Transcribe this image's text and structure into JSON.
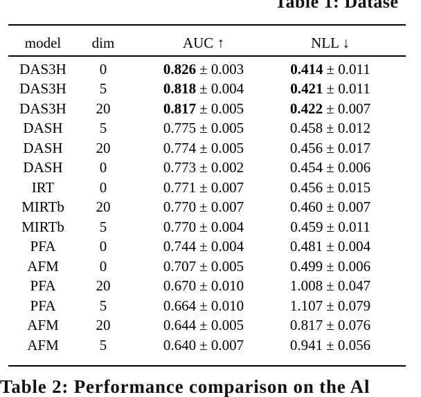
{
  "captions": {
    "top_fragment": "Table 1: Datase",
    "bottom_fragment": "Table 2: Performance comparison on the Al"
  },
  "table": {
    "headers": {
      "model": "model",
      "dim": "dim",
      "auc": "AUC ↑",
      "nll": "NLL ↓"
    },
    "rows": [
      {
        "model": "DAS3H",
        "dim": "0",
        "auc": "0.826",
        "auc_err": "± 0.003",
        "nll": "0.414",
        "nll_err": "± 0.011",
        "bold": true
      },
      {
        "model": "DAS3H",
        "dim": "5",
        "auc": "0.818",
        "auc_err": "± 0.004",
        "nll": "0.421",
        "nll_err": "± 0.011",
        "bold": true
      },
      {
        "model": "DAS3H",
        "dim": "20",
        "auc": "0.817",
        "auc_err": "± 0.005",
        "nll": "0.422",
        "nll_err": "± 0.007",
        "bold": true
      },
      {
        "model": "DASH",
        "dim": "5",
        "auc": "0.775",
        "auc_err": "± 0.005",
        "nll": "0.458",
        "nll_err": "± 0.012",
        "bold": false
      },
      {
        "model": "DASH",
        "dim": "20",
        "auc": "0.774",
        "auc_err": "± 0.005",
        "nll": "0.456",
        "nll_err": "± 0.017",
        "bold": false
      },
      {
        "model": "DASH",
        "dim": "0",
        "auc": "0.773",
        "auc_err": "± 0.002",
        "nll": "0.454",
        "nll_err": "± 0.006",
        "bold": false
      },
      {
        "model": "IRT",
        "dim": "0",
        "auc": "0.771",
        "auc_err": "± 0.007",
        "nll": "0.456",
        "nll_err": "± 0.015",
        "bold": false
      },
      {
        "model": "MIRTb",
        "dim": "20",
        "auc": "0.770",
        "auc_err": "± 0.007",
        "nll": "0.460",
        "nll_err": "± 0.007",
        "bold": false
      },
      {
        "model": "MIRTb",
        "dim": "5",
        "auc": "0.770",
        "auc_err": "± 0.004",
        "nll": "0.459",
        "nll_err": "± 0.011",
        "bold": false
      },
      {
        "model": "PFA",
        "dim": "0",
        "auc": "0.744",
        "auc_err": "± 0.004",
        "nll": "0.481",
        "nll_err": "± 0.004",
        "bold": false
      },
      {
        "model": "AFM",
        "dim": "0",
        "auc": "0.707",
        "auc_err": "± 0.005",
        "nll": "0.499",
        "nll_err": "± 0.006",
        "bold": false
      },
      {
        "model": "PFA",
        "dim": "20",
        "auc": "0.670",
        "auc_err": "± 0.010",
        "nll": "1.008",
        "nll_err": "± 0.047",
        "bold": false
      },
      {
        "model": "PFA",
        "dim": "5",
        "auc": "0.664",
        "auc_err": "± 0.010",
        "nll": "1.107",
        "nll_err": "± 0.079",
        "bold": false
      },
      {
        "model": "AFM",
        "dim": "20",
        "auc": "0.644",
        "auc_err": "± 0.005",
        "nll": "0.817",
        "nll_err": "± 0.076",
        "bold": false
      },
      {
        "model": "AFM",
        "dim": "5",
        "auc": "0.640",
        "auc_err": "± 0.007",
        "nll": "0.941",
        "nll_err": "± 0.056",
        "bold": false
      }
    ]
  }
}
